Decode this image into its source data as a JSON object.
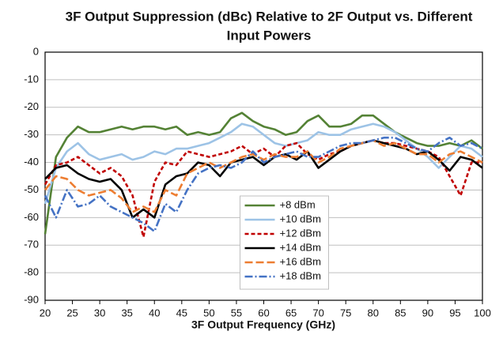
{
  "chart_data": {
    "type": "line",
    "title": [
      "3F Output Suppression (dBc) Relative to 2F Output vs. Different",
      "Input Powers"
    ],
    "x_label": "3F Output Frequency (GHz)",
    "x": [
      20,
      22,
      24,
      26,
      28,
      30,
      32,
      34,
      36,
      38,
      40,
      42,
      44,
      46,
      48,
      50,
      52,
      54,
      56,
      58,
      60,
      62,
      64,
      66,
      68,
      70,
      72,
      74,
      76,
      78,
      80,
      82,
      84,
      86,
      88,
      90,
      92,
      94,
      96,
      98,
      100
    ],
    "xlim": [
      20,
      100
    ],
    "xticks": [
      20,
      25,
      30,
      35,
      40,
      45,
      50,
      55,
      60,
      65,
      70,
      75,
      80,
      85,
      90,
      95,
      100
    ],
    "ylim": [
      -90,
      0
    ],
    "yticks": [
      0,
      -10,
      -20,
      -30,
      -40,
      -50,
      -60,
      -70,
      -80,
      -90
    ],
    "grid": true,
    "legend": "bottom center",
    "series": [
      {
        "name": "+8 dBm",
        "color": "#548235",
        "dash": "solid",
        "values": [
          -66,
          -38,
          -31,
          -27,
          -29,
          -29,
          -28,
          -27,
          -28,
          -27,
          -27,
          -28,
          -27,
          -30,
          -29,
          -30,
          -29,
          -24,
          -22,
          -25,
          -27,
          -28,
          -30,
          -29,
          -25,
          -23,
          -27,
          -27,
          -26,
          -23,
          -23,
          -26,
          -29,
          -31,
          -33,
          -34,
          -34,
          -33,
          -34,
          -32,
          -35
        ]
      },
      {
        "name": "+10 dBm",
        "color": "#9dc3e6",
        "dash": "solid",
        "values": [
          -55,
          -42,
          -36,
          -33,
          -37,
          -39,
          -38,
          -37,
          -39,
          -38,
          -36,
          -37,
          -35,
          -35,
          -34,
          -33,
          -31,
          -29,
          -26,
          -27,
          -30,
          -33,
          -34,
          -33,
          -32,
          -29,
          -30,
          -30,
          -28,
          -27,
          -26,
          -27,
          -29,
          -32,
          -35,
          -38,
          -42,
          -38,
          -34,
          -35,
          -38
        ]
      },
      {
        "name": "+12 dBm",
        "color": "#c00000",
        "dash": "dashed",
        "values": [
          -48,
          -41,
          -40,
          -38,
          -41,
          -44,
          -42,
          -45,
          -52,
          -67,
          -47,
          -40,
          -41,
          -36,
          -37,
          -38,
          -37,
          -36,
          -34,
          -37,
          -35,
          -38,
          -34,
          -33,
          -37,
          -39,
          -37,
          -36,
          -34,
          -33,
          -32,
          -33,
          -33,
          -34,
          -35,
          -36,
          -38,
          -45,
          -52,
          -40,
          -40
        ]
      },
      {
        "name": "+14 dBm",
        "color": "#000000",
        "dash": "solid",
        "values": [
          -46,
          -42,
          -41,
          -44,
          -46,
          -47,
          -46,
          -50,
          -60,
          -57,
          -60,
          -48,
          -45,
          -44,
          -40,
          -41,
          -45,
          -40,
          -39,
          -38,
          -41,
          -38,
          -37,
          -39,
          -36,
          -42,
          -39,
          -36,
          -34,
          -33,
          -32,
          -33,
          -34,
          -35,
          -37,
          -36,
          -39,
          -43,
          -38,
          -39,
          -42
        ]
      },
      {
        "name": "+16 dBm",
        "color": "#ed7d31",
        "dash": "longdash",
        "values": [
          -50,
          -45,
          -46,
          -50,
          -52,
          -51,
          -50,
          -53,
          -58,
          -56,
          -58,
          -50,
          -52,
          -44,
          -42,
          -40,
          -42,
          -40,
          -38,
          -37,
          -39,
          -37,
          -38,
          -38,
          -36,
          -40,
          -38,
          -35,
          -34,
          -33,
          -32,
          -34,
          -33,
          -35,
          -37,
          -37,
          -40,
          -37,
          -36,
          -38,
          -40
        ]
      },
      {
        "name": "+18 dBm",
        "color": "#4472c4",
        "dash": "dashdot",
        "values": [
          -52,
          -60,
          -50,
          -56,
          -55,
          -52,
          -56,
          -58,
          -60,
          -62,
          -65,
          -55,
          -58,
          -50,
          -44,
          -42,
          -41,
          -42,
          -40,
          -36,
          -40,
          -38,
          -37,
          -36,
          -38,
          -38,
          -36,
          -34,
          -33,
          -33,
          -32,
          -31,
          -31,
          -33,
          -35,
          -36,
          -33,
          -31,
          -34,
          -33,
          -35
        ]
      }
    ]
  }
}
